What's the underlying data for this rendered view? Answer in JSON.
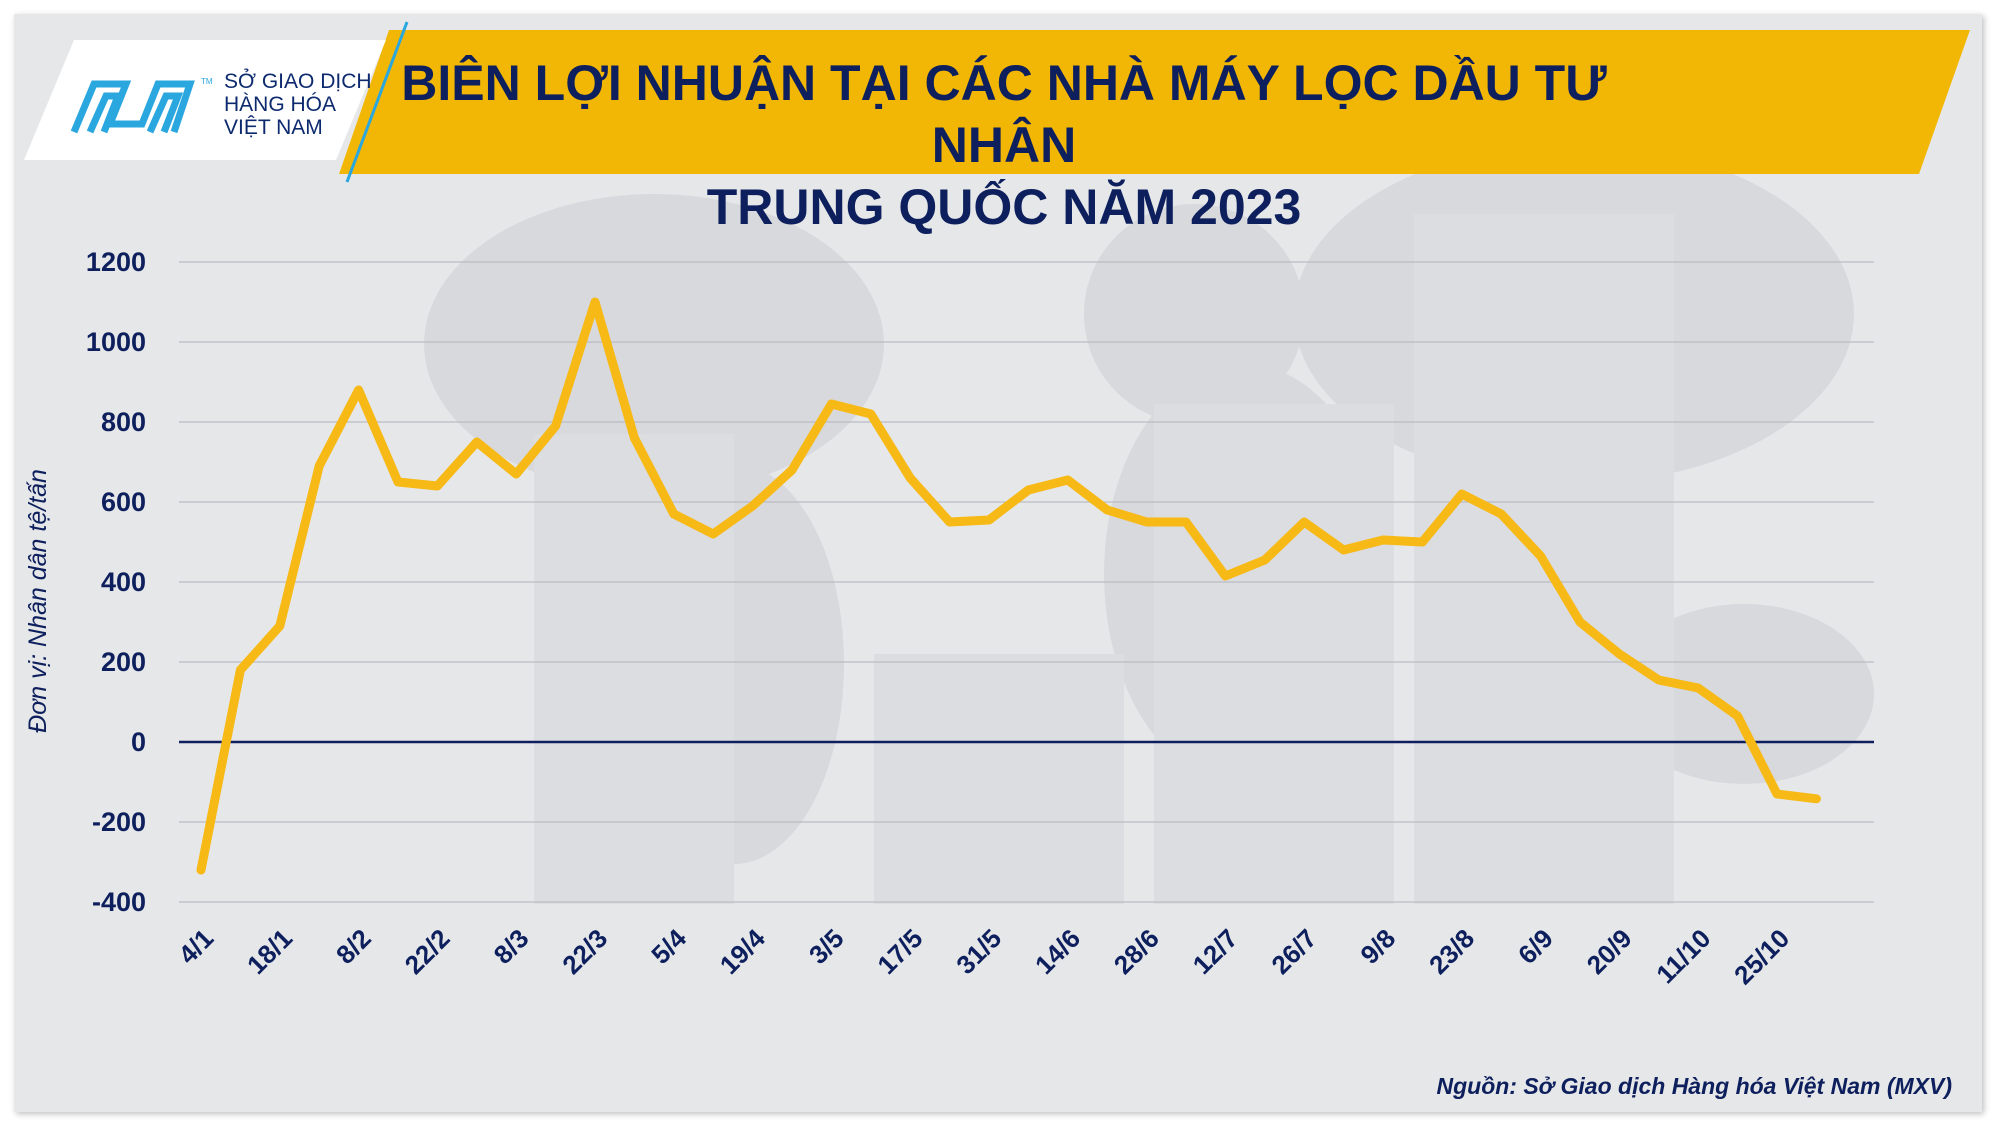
{
  "header": {
    "title_line1": "BIÊN LỢI NHUẬN TẠI CÁC NHÀ MÁY LỌC DẦU TƯ NHÂN",
    "title_line2": "TRUNG QUỐC NĂM 2023",
    "logo_line1": "SỞ GIAO DỊCH",
    "logo_line2": "HÀNG HÓA",
    "logo_line3": "VIỆT NAM",
    "logo_tm": "TM"
  },
  "footer": {
    "source": "Nguồn: Sở Giao dịch Hàng hóa Việt Nam (MXV)"
  },
  "colors": {
    "banner": "#f2b705",
    "line": "#f7b916",
    "text": "#0d1f5c",
    "background": "#e6e7e9",
    "logo_blue": "#2aa7df"
  },
  "chart_data": {
    "type": "line",
    "title": "BIÊN LỢI NHUẬN TẠI CÁC NHÀ MÁY LỌC DẦU TƯ NHÂN TRUNG QUỐC NĂM 2023",
    "ylabel": "Đơn vị: Nhân dân tệ/tấn",
    "xlabel": "",
    "ylim": [
      -400,
      1200
    ],
    "yticks": [
      -400,
      -200,
      0,
      200,
      400,
      600,
      800,
      1000,
      1200
    ],
    "xtick_labels": [
      "4/1",
      "18/1",
      "8/2",
      "22/2",
      "8/3",
      "22/3",
      "5/4",
      "19/4",
      "3/5",
      "17/5",
      "31/5",
      "14/6",
      "28/6",
      "12/7",
      "26/7",
      "9/8",
      "23/8",
      "6/9",
      "20/9",
      "11/10",
      "25/10"
    ],
    "grid": true,
    "values": [
      -320,
      180,
      290,
      690,
      880,
      650,
      640,
      750,
      670,
      790,
      1100,
      760,
      570,
      520,
      590,
      680,
      845,
      820,
      660,
      550,
      555,
      630,
      655,
      580,
      550,
      550,
      415,
      455,
      550,
      480,
      505,
      500,
      620,
      570,
      465,
      300,
      220,
      155,
      135,
      65,
      -130,
      -142
    ]
  }
}
